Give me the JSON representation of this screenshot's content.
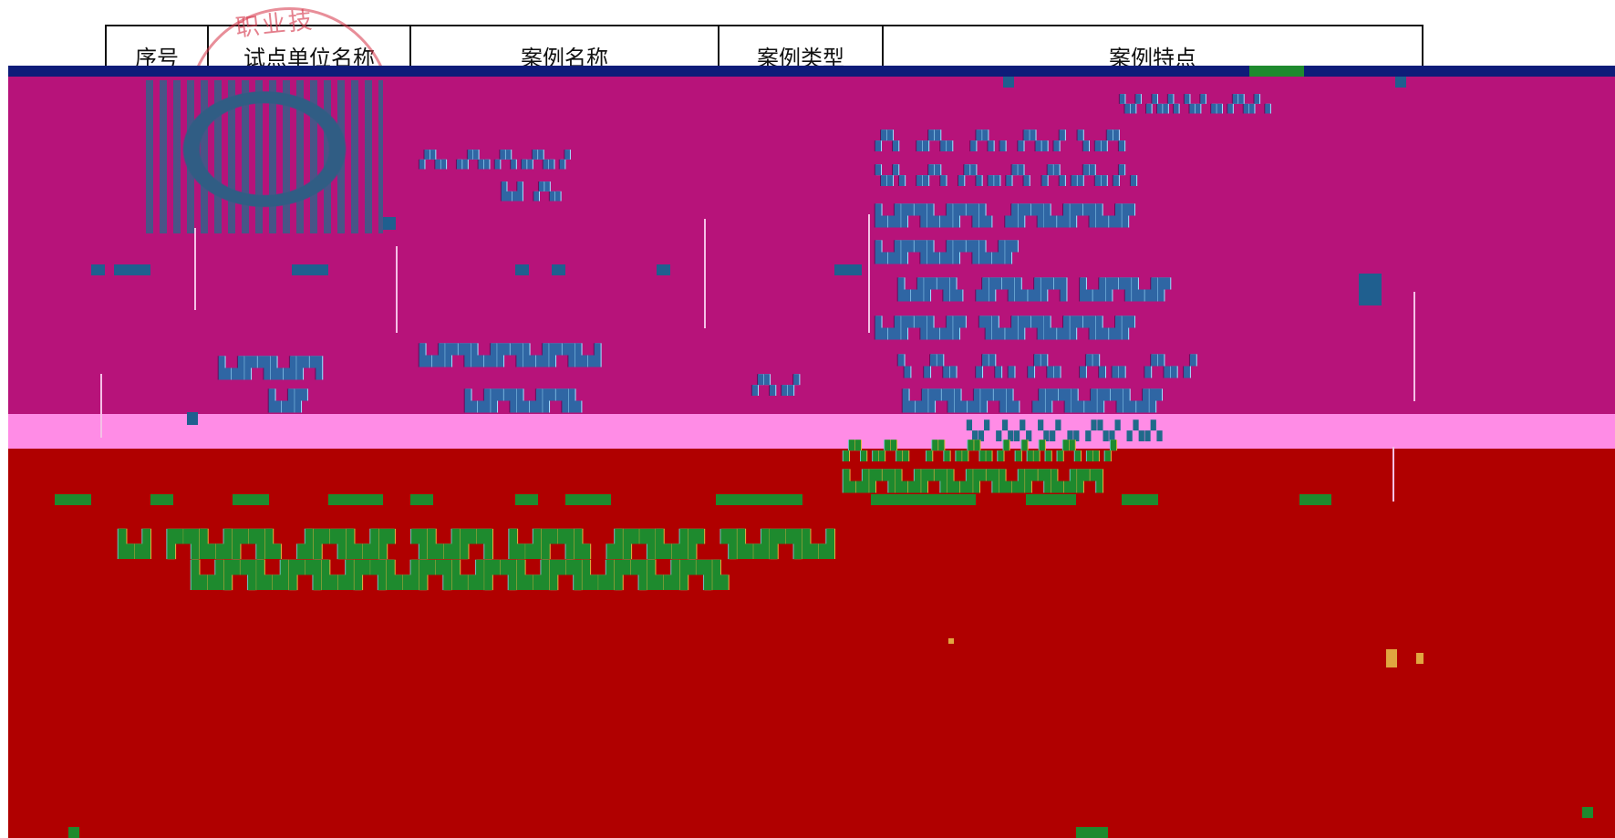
{
  "table": {
    "headers": [
      "序号",
      "试点单位名称",
      "案例名称",
      "案例类型",
      "案例特点"
    ]
  },
  "stamp": {
    "text": "职业技"
  },
  "colors": {
    "navy": "#0e1c79",
    "magenta": "#b7137a",
    "pink": "#ff8ce6",
    "red": "#b00000",
    "glitch_blue": "#2f66a4",
    "glitch_green": "#1e8a2e"
  }
}
